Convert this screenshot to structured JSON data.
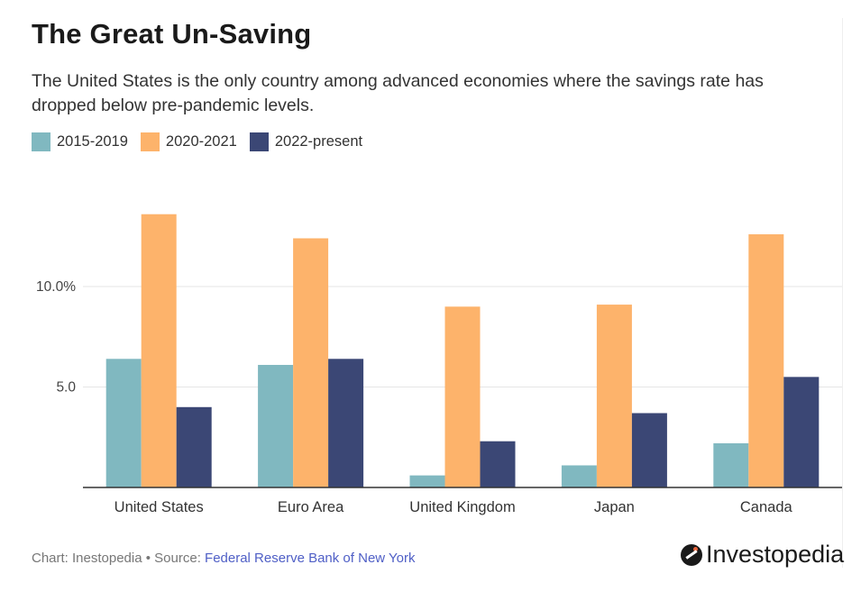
{
  "chart_data": {
    "type": "bar",
    "title": "The Great Un-Saving",
    "subtitle": "The United States is the only country among advanced economies where the savings rate has dropped below pre-pandemic levels.",
    "xlabel": "",
    "ylabel": "",
    "categories": [
      "United States",
      "Euro Area",
      "United Kingdom",
      "Japan",
      "Canada"
    ],
    "series": [
      {
        "name": "2015-2019",
        "color": "#80b8c0",
        "values": [
          6.4,
          6.1,
          0.6,
          1.1,
          2.2
        ]
      },
      {
        "name": "2020-2021",
        "color": "#fdb36b",
        "values": [
          13.6,
          12.4,
          9.0,
          9.1,
          12.6
        ]
      },
      {
        "name": "2022-present",
        "color": "#3b4775",
        "values": [
          4.0,
          6.4,
          2.3,
          3.7,
          5.5
        ]
      }
    ],
    "ylim": [
      0,
      15
    ],
    "yticks": [
      {
        "value": 5,
        "label": "5.0"
      },
      {
        "value": 10,
        "label": "10.0%"
      }
    ],
    "grid": true,
    "legend_position": "top-left"
  },
  "footer": {
    "chart_credit": "Chart: Inestopedia • Source: ",
    "source_link": "Federal Reserve Bank of New York"
  },
  "logo": {
    "text": "Investopedia",
    "icon": "investopedia-logo-icon"
  }
}
